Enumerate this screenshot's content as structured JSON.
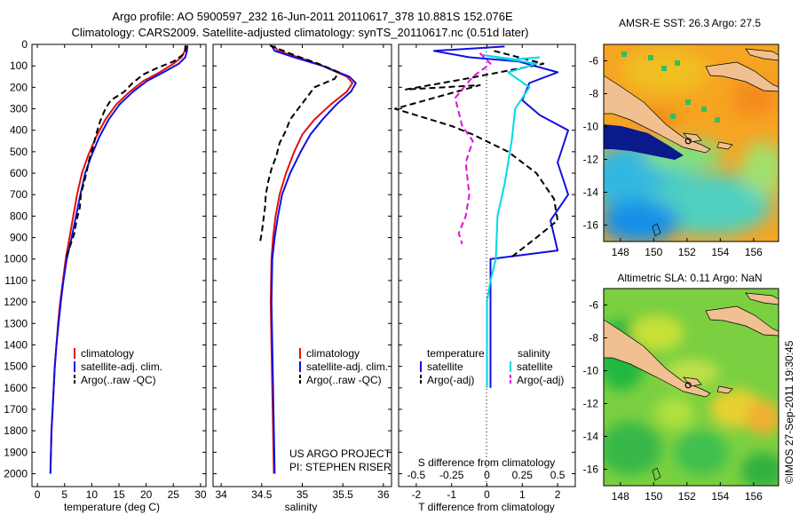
{
  "header": {
    "title_line1": "Argo profile: AO 5900597_232 16-Jun-2011 20110617_378 10.881S 152.076E",
    "title_line2": "Climatology: CARS2009. Satellite-adjusted climatology: synTS_20110617.nc (0.51d later)"
  },
  "colors": {
    "climatology": "#e01010",
    "satellite": "#1010e0",
    "argo": "#000000",
    "sal_satellite": "#00d8e8",
    "sal_argo": "#e010e0",
    "land": "#f0c090"
  },
  "chart_data": [
    {
      "type": "line",
      "id": "temperature",
      "xlabel": "temperature (deg C)",
      "ylabel": "",
      "xlim": [
        -1,
        31
      ],
      "ylim": [
        2060,
        0
      ],
      "xticks": [
        0,
        5,
        10,
        15,
        20,
        25,
        30
      ],
      "yticks": [
        0,
        100,
        200,
        300,
        400,
        500,
        600,
        700,
        800,
        900,
        1000,
        1100,
        1200,
        1300,
        1400,
        1500,
        1600,
        1700,
        1800,
        1900,
        2000
      ],
      "legend": [
        "climatology",
        "satellite-adj. clim.",
        "Argo(..raw -QC)"
      ],
      "series": [
        {
          "name": "climatology",
          "style": "solid",
          "color": "#e01010",
          "points": [
            [
              27.2,
              5
            ],
            [
              27.1,
              30
            ],
            [
              26.5,
              60
            ],
            [
              25,
              90
            ],
            [
              22.5,
              130
            ],
            [
              19.5,
              170
            ],
            [
              17,
              220
            ],
            [
              14.5,
              280
            ],
            [
              12.5,
              350
            ],
            [
              10.8,
              430
            ],
            [
              9.3,
              520
            ],
            [
              8.2,
              600
            ],
            [
              7.3,
              700
            ],
            [
              6.6,
              800
            ],
            [
              5.9,
              900
            ],
            [
              5.2,
              1000
            ],
            [
              4.7,
              1100
            ],
            [
              4.2,
              1200
            ],
            [
              3.8,
              1300
            ],
            [
              3.5,
              1400
            ],
            [
              3.2,
              1500
            ],
            [
              3.0,
              1600
            ],
            [
              2.8,
              1700
            ],
            [
              2.6,
              1800
            ],
            [
              2.5,
              1900
            ],
            [
              2.4,
              2000
            ]
          ]
        },
        {
          "name": "satellite-adj. clim.",
          "style": "solid",
          "color": "#1010e0",
          "points": [
            [
              27.6,
              5
            ],
            [
              27.5,
              30
            ],
            [
              27.2,
              60
            ],
            [
              26,
              90
            ],
            [
              23.2,
              130
            ],
            [
              20.2,
              170
            ],
            [
              17.6,
              220
            ],
            [
              15.1,
              280
            ],
            [
              13.1,
              350
            ],
            [
              11.4,
              430
            ],
            [
              9.9,
              520
            ],
            [
              8.8,
              600
            ],
            [
              7.9,
              700
            ],
            [
              7.1,
              800
            ],
            [
              6.3,
              900
            ],
            [
              5.4,
              1000
            ],
            [
              4.8,
              1100
            ],
            [
              4.3,
              1200
            ],
            [
              3.9,
              1300
            ],
            [
              3.5,
              1400
            ],
            [
              3.2,
              1500
            ],
            [
              3.0,
              1600
            ],
            [
              2.8,
              1700
            ],
            [
              2.6,
              1800
            ],
            [
              2.5,
              1900
            ],
            [
              2.4,
              2000
            ]
          ]
        },
        {
          "name": "Argo(..raw -QC)",
          "style": "dash",
          "color": "#000000",
          "points": [
            [
              27.3,
              5
            ],
            [
              27.2,
              40
            ],
            [
              25,
              80
            ],
            [
              22,
              110
            ],
            [
              19.5,
              140
            ],
            [
              17.5,
              180
            ],
            [
              16,
              220
            ],
            [
              13.5,
              260
            ],
            [
              12.5,
              300
            ],
            [
              11.5,
              360
            ],
            [
              10.8,
              420
            ],
            [
              10.2,
              480
            ],
            [
              9.5,
              540
            ],
            [
              9.0,
              600
            ],
            [
              8.5,
              650
            ],
            [
              8.0,
              700
            ],
            [
              7.8,
              760
            ],
            [
              7.2,
              820
            ],
            [
              6.8,
              880
            ],
            [
              6.0,
              940
            ],
            [
              5.3,
              990
            ]
          ]
        }
      ]
    },
    {
      "type": "line",
      "id": "salinity",
      "xlabel": "salinity",
      "xlim": [
        33.9,
        36.1
      ],
      "ylim": [
        2060,
        0
      ],
      "xticks": [
        34,
        34.5,
        35,
        35.5,
        36
      ],
      "legend": [
        "climatology",
        "satellite-adj. clim.",
        "Argo(..raw -QC)"
      ],
      "annotation": [
        "US ARGO PROJECT",
        "PI: STEPHEN RISER"
      ],
      "series": [
        {
          "name": "climatology",
          "style": "solid",
          "color": "#e01010",
          "points": [
            [
              34.65,
              5
            ],
            [
              34.7,
              30
            ],
            [
              34.95,
              60
            ],
            [
              35.25,
              100
            ],
            [
              35.55,
              150
            ],
            [
              35.62,
              180
            ],
            [
              35.55,
              220
            ],
            [
              35.35,
              280
            ],
            [
              35.15,
              350
            ],
            [
              35.0,
              420
            ],
            [
              34.9,
              500
            ],
            [
              34.8,
              600
            ],
            [
              34.72,
              700
            ],
            [
              34.67,
              800
            ],
            [
              34.64,
              900
            ],
            [
              34.62,
              1000
            ],
            [
              34.61,
              1200
            ],
            [
              34.62,
              1400
            ],
            [
              34.63,
              1600
            ],
            [
              34.64,
              1800
            ],
            [
              34.65,
              2000
            ]
          ]
        },
        {
          "name": "satellite-adj. clim.",
          "style": "solid",
          "color": "#1010e0",
          "points": [
            [
              34.62,
              5
            ],
            [
              34.66,
              30
            ],
            [
              34.9,
              60
            ],
            [
              35.25,
              100
            ],
            [
              35.58,
              150
            ],
            [
              35.66,
              180
            ],
            [
              35.6,
              220
            ],
            [
              35.42,
              280
            ],
            [
              35.25,
              350
            ],
            [
              35.1,
              420
            ],
            [
              34.98,
              500
            ],
            [
              34.85,
              600
            ],
            [
              34.75,
              700
            ],
            [
              34.7,
              800
            ],
            [
              34.66,
              900
            ],
            [
              34.63,
              1000
            ],
            [
              34.62,
              1200
            ],
            [
              34.63,
              1400
            ],
            [
              34.64,
              1600
            ],
            [
              34.65,
              1800
            ],
            [
              34.66,
              2000
            ]
          ]
        },
        {
          "name": "Argo(..raw -QC)",
          "style": "dash",
          "color": "#000000",
          "points": [
            [
              34.6,
              5
            ],
            [
              34.9,
              50
            ],
            [
              35.2,
              90
            ],
            [
              35.45,
              130
            ],
            [
              35.4,
              160
            ],
            [
              35.15,
              200
            ],
            [
              35.05,
              250
            ],
            [
              34.95,
              300
            ],
            [
              34.85,
              350
            ],
            [
              34.8,
              400
            ],
            [
              34.72,
              460
            ],
            [
              34.68,
              520
            ],
            [
              34.62,
              580
            ],
            [
              34.58,
              640
            ],
            [
              34.55,
              700
            ],
            [
              34.54,
              760
            ],
            [
              34.52,
              820
            ],
            [
              34.5,
              880
            ],
            [
              34.48,
              920
            ]
          ]
        }
      ]
    },
    {
      "type": "line",
      "id": "difference",
      "xlabel": "T difference from climatology",
      "xlabel_top": "S difference from climatology",
      "xlim": [
        -2.5,
        2.5
      ],
      "ylim": [
        2060,
        0
      ],
      "xticks_T": [
        -2,
        -1,
        0,
        1,
        2
      ],
      "xticks_S_labels": [
        "-0.5",
        "-0.25",
        "0",
        "0.25",
        "0.5"
      ],
      "legend_headers": [
        "temperature",
        "salinity"
      ],
      "legend_left": [
        "satellite",
        "Argo(-adj)"
      ],
      "legend_right": [
        "satellite",
        "Argo(-adj)"
      ],
      "series": [
        {
          "name": "temperature satellite",
          "style": "solid",
          "color": "#1010e0",
          "points": [
            [
              0.5,
              10
            ],
            [
              -1.5,
              30
            ],
            [
              -0.5,
              60
            ],
            [
              0.9,
              80
            ],
            [
              2,
              130
            ],
            [
              1.2,
              180
            ],
            [
              1.0,
              260
            ],
            [
              1.5,
              330
            ],
            [
              2.3,
              400
            ],
            [
              2.0,
              550
            ],
            [
              2.3,
              700
            ],
            [
              1.8,
              820
            ],
            [
              2.0,
              960
            ],
            [
              0.1,
              1000
            ],
            [
              0.1,
              1300
            ],
            [
              0.1,
              1600
            ]
          ]
        },
        {
          "name": "temperature Argo(-adj)",
          "style": "dash",
          "color": "#000000",
          "points": [
            [
              0.2,
              30
            ],
            [
              1.6,
              90
            ],
            [
              -0.6,
              160
            ],
            [
              -2.3,
              210
            ],
            [
              -0.2,
              190
            ],
            [
              -2.6,
              300
            ],
            [
              -1.8,
              340
            ],
            [
              -1.0,
              380
            ],
            [
              -0.4,
              420
            ],
            [
              0.6,
              500
            ],
            [
              1.4,
              600
            ],
            [
              1.9,
              720
            ],
            [
              2.0,
              820
            ],
            [
              1.4,
              900
            ],
            [
              0.7,
              990
            ]
          ]
        },
        {
          "name": "salinity satellite",
          "style": "solid",
          "color": "#00d8e8",
          "points": [
            [
              1.5,
              60
            ],
            [
              0.8,
              70
            ],
            [
              -0.1,
              50
            ],
            [
              1.4,
              90
            ],
            [
              0.6,
              130
            ],
            [
              1.2,
              200
            ],
            [
              0.8,
              300
            ],
            [
              0.7,
              450
            ],
            [
              0.6,
              550
            ],
            [
              0.5,
              650
            ],
            [
              0.3,
              800
            ],
            [
              0.25,
              1000
            ],
            [
              0.1,
              1100
            ],
            [
              0,
              1200
            ],
            [
              0,
              1600
            ]
          ]
        },
        {
          "name": "salinity Argo(-adj)",
          "style": "dash",
          "color": "#e010e0",
          "points": [
            [
              -0.2,
              40
            ],
            [
              0.1,
              90
            ],
            [
              -0.4,
              150
            ],
            [
              -0.9,
              250
            ],
            [
              -0.7,
              380
            ],
            [
              -0.4,
              450
            ],
            [
              -0.6,
              550
            ],
            [
              -0.5,
              700
            ],
            [
              -0.6,
              800
            ],
            [
              -0.8,
              880
            ],
            [
              -0.7,
              930
            ]
          ]
        }
      ]
    },
    {
      "type": "heatmap",
      "id": "sst-map",
      "title": "AMSR-E SST: 26.3 Argo: 27.5",
      "xlim": [
        147,
        157.5
      ],
      "ylim": [
        -17,
        -5
      ],
      "xticks": [
        148,
        150,
        152,
        154,
        156
      ],
      "yticks": [
        -6,
        -8,
        -10,
        -12,
        -14,
        -16
      ],
      "profile_location": [
        152.076,
        -10.881
      ]
    },
    {
      "type": "heatmap",
      "id": "sla-map",
      "title": "Altimetric SLA: 0.11 Argo: NaN",
      "xlim": [
        147,
        157.5
      ],
      "ylim": [
        -17,
        -5
      ],
      "xticks": [
        148,
        150,
        152,
        154,
        156
      ],
      "yticks": [
        -6,
        -8,
        -10,
        -12,
        -14,
        -16
      ],
      "profile_location": [
        152.076,
        -10.881
      ]
    }
  ],
  "footer": {
    "credit": "©IMOS 27-Sep-2011 19:30:45"
  }
}
